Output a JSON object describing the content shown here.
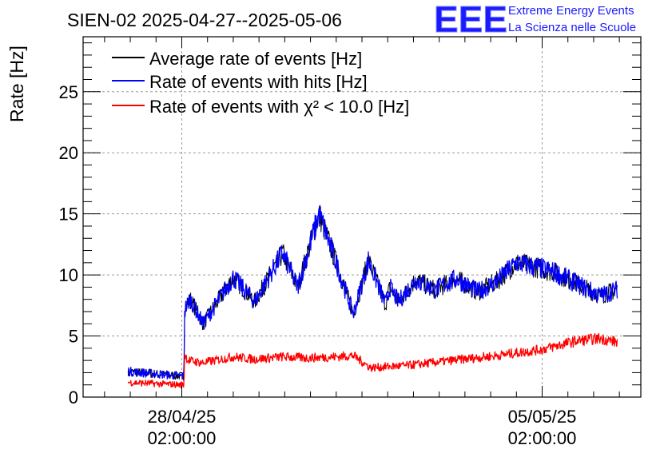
{
  "chart_data": {
    "type": "line",
    "title": "SIEN-02 2025-04-27--2025-05-06",
    "ylabel": "Rate [Hz]",
    "xlabel": "",
    "ylim": [
      0,
      29.5
    ],
    "yticks": [
      0,
      5,
      10,
      15,
      20,
      25
    ],
    "grid": true,
    "legend_position": "top-left",
    "x_tick_labels": [
      {
        "date": "28/04/25",
        "time": "02:00:00",
        "x": "2025-04-28T02:00:00"
      },
      {
        "date": "05/05/25",
        "time": "02:00:00",
        "x": "2025-05-05T02:00:00"
      }
    ],
    "series": [
      {
        "name": "Average rate of events [Hz]",
        "color": "#000000",
        "x": [
          "2025-04-27T01:00:00",
          "2025-04-28T03:00:00",
          "2025-04-28T03:20:00",
          "2025-04-28T06:00:00",
          "2025-04-28T12:00:00",
          "2025-04-29T02:00:00",
          "2025-04-29T12:00:00",
          "2025-04-30T01:00:00",
          "2025-04-30T08:00:00",
          "2025-04-30T18:00:00",
          "2025-05-01T02:00:00",
          "2025-05-01T10:00:00",
          "2025-05-01T17:00:00",
          "2025-05-02T01:00:00",
          "2025-05-02T03:00:00",
          "2025-05-02T07:00:00",
          "2025-05-02T15:00:00",
          "2025-05-03T00:00:00",
          "2025-05-03T10:00:00",
          "2025-05-03T20:00:00",
          "2025-05-04T05:00:00",
          "2025-05-04T14:00:00",
          "2025-05-05T00:00:00",
          "2025-05-05T08:00:00",
          "2025-05-05T18:00:00",
          "2025-05-06T05:00:00",
          "2025-05-06T13:00:00"
        ],
        "y": [
          2.1,
          1.7,
          7.2,
          8.0,
          6.0,
          9.8,
          7.8,
          11.8,
          9.0,
          15.0,
          11.0,
          6.8,
          11.2,
          7.6,
          9.0,
          7.8,
          9.6,
          8.8,
          9.7,
          8.6,
          9.5,
          11.0,
          10.6,
          10.2,
          9.3,
          8.3,
          8.8
        ]
      },
      {
        "name": "Rate of events with hits [Hz]",
        "color": "#0000ff",
        "x": [
          "2025-04-27T01:00:00",
          "2025-04-28T03:00:00",
          "2025-04-28T03:20:00",
          "2025-04-28T06:00:00",
          "2025-04-28T12:00:00",
          "2025-04-29T02:00:00",
          "2025-04-29T12:00:00",
          "2025-04-30T01:00:00",
          "2025-04-30T08:00:00",
          "2025-04-30T18:00:00",
          "2025-05-01T02:00:00",
          "2025-05-01T10:00:00",
          "2025-05-01T17:00:00",
          "2025-05-02T01:00:00",
          "2025-05-02T03:00:00",
          "2025-05-02T07:00:00",
          "2025-05-02T15:00:00",
          "2025-05-03T00:00:00",
          "2025-05-03T10:00:00",
          "2025-05-03T20:00:00",
          "2025-05-04T05:00:00",
          "2025-05-04T14:00:00",
          "2025-05-05T00:00:00",
          "2025-05-05T08:00:00",
          "2025-05-05T18:00:00",
          "2025-05-06T05:00:00",
          "2025-05-06T13:00:00"
        ],
        "y": [
          2.1,
          1.7,
          7.2,
          8.0,
          6.0,
          9.8,
          7.8,
          11.8,
          9.0,
          15.0,
          11.0,
          6.8,
          11.2,
          7.6,
          9.0,
          7.8,
          9.6,
          8.8,
          9.7,
          8.6,
          9.5,
          11.0,
          10.6,
          10.2,
          9.3,
          8.3,
          8.8
        ]
      },
      {
        "name": "Rate of events with χ² < 10.0 [Hz]",
        "color": "#ff0000",
        "x": [
          "2025-04-27T01:00:00",
          "2025-04-28T03:00:00",
          "2025-04-28T03:20:00",
          "2025-04-28T05:00:00",
          "2025-04-28T12:00:00",
          "2025-04-29T02:00:00",
          "2025-04-29T12:00:00",
          "2025-04-30T01:00:00",
          "2025-04-30T12:00:00",
          "2025-05-01T02:00:00",
          "2025-05-01T10:00:00",
          "2025-05-01T18:00:00",
          "2025-05-02T12:00:00",
          "2025-05-03T08:00:00",
          "2025-05-04T05:00:00",
          "2025-05-05T02:00:00",
          "2025-05-05T18:00:00",
          "2025-05-06T05:00:00",
          "2025-05-06T13:00:00"
        ],
        "y": [
          1.2,
          1.0,
          3.5,
          3.0,
          2.8,
          3.3,
          3.1,
          3.3,
          3.2,
          3.3,
          3.4,
          2.4,
          2.6,
          3.0,
          3.4,
          3.9,
          4.6,
          4.8,
          4.5
        ]
      }
    ]
  },
  "logo": {
    "letters": "EEE",
    "line1": "Extreme Energy Events",
    "line2": "La Scienza nelle Scuole",
    "color": "#1a1aff"
  }
}
